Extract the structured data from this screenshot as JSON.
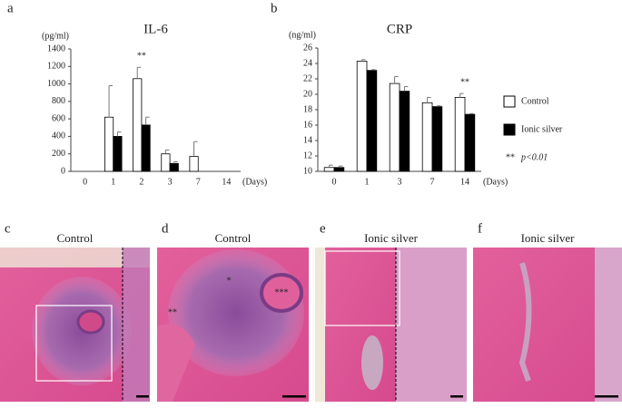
{
  "chart_data": [
    {
      "type": "bar",
      "letter": "a",
      "title": "IL-6",
      "ylabel": "(pg/ml)",
      "xlabel": "(Days)",
      "categories": [
        "0",
        "1",
        "2",
        "3",
        "7",
        "14"
      ],
      "series": [
        {
          "name": "Control",
          "color": "#ffffff",
          "values": [
            0,
            620,
            1060,
            200,
            170,
            0
          ],
          "errors": [
            0,
            360,
            130,
            45,
            170,
            0
          ]
        },
        {
          "name": "Ionic silver",
          "color": "#000000",
          "values": [
            0,
            400,
            530,
            90,
            0,
            0
          ],
          "errors": [
            0,
            50,
            90,
            20,
            0,
            0
          ]
        }
      ],
      "ylim": [
        0,
        1400
      ],
      "yticks": [
        0,
        200,
        400,
        600,
        800,
        1000,
        1200,
        1400
      ],
      "annotations": [
        {
          "text": "**",
          "x": "2"
        }
      ]
    },
    {
      "type": "bar",
      "letter": "b",
      "title": "CRP",
      "ylabel": "(ng/ml)",
      "xlabel": "(Days)",
      "categories": [
        "0",
        "1",
        "3",
        "7",
        "14"
      ],
      "series": [
        {
          "name": "Control",
          "color": "#ffffff",
          "values": [
            10.5,
            24.3,
            21.4,
            18.9,
            19.6
          ],
          "errors": [
            0.3,
            0.2,
            0.9,
            0.7,
            0.5
          ]
        },
        {
          "name": "Ionic silver",
          "color": "#000000",
          "values": [
            10.5,
            23.1,
            20.4,
            18.4,
            17.4
          ],
          "errors": [
            0.2,
            0.1,
            0.6,
            0.1,
            0.1
          ]
        }
      ],
      "ylim": [
        10,
        26
      ],
      "yticks": [
        10,
        12,
        14,
        16,
        18,
        20,
        22,
        24,
        26
      ],
      "annotations": [
        {
          "text": "**",
          "x": "14"
        }
      ],
      "legend": "right",
      "note": {
        "stars": "**",
        "text": "p<0.01"
      }
    }
  ],
  "panels": [
    {
      "letter": "c",
      "title": "Control"
    },
    {
      "letter": "d",
      "title": "Control",
      "annotations": [
        "**",
        "*",
        "***"
      ]
    },
    {
      "letter": "e",
      "title": "Ionic silver"
    },
    {
      "letter": "f",
      "title": "Ionic silver"
    }
  ]
}
